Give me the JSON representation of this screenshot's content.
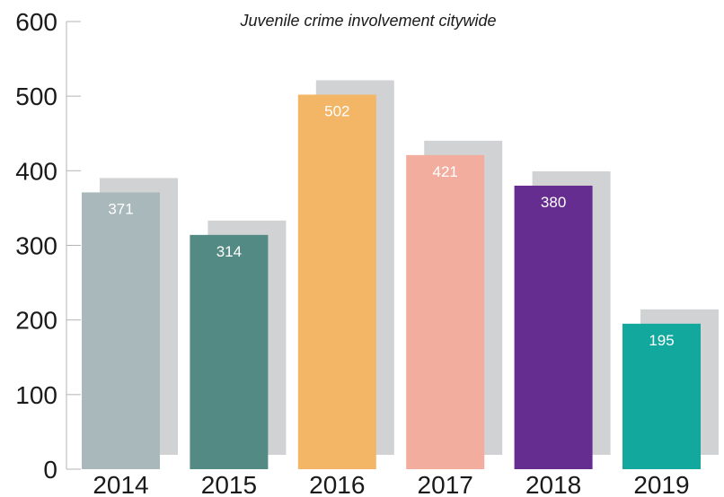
{
  "chart_data": {
    "type": "bar",
    "title": "Juvenile crime involvement citywide",
    "xlabel": "",
    "ylabel": "",
    "categories": [
      "2014",
      "2015",
      "2016",
      "2017",
      "2018",
      "2019"
    ],
    "values": [
      371,
      314,
      502,
      421,
      380,
      195
    ],
    "data_labels": [
      "371",
      "314",
      "502",
      "421",
      "380",
      "195"
    ],
    "ylim": [
      0,
      600
    ],
    "yticks": [
      "0",
      "100",
      "200",
      "300",
      "400",
      "500",
      "600"
    ],
    "bar_colors": [
      "#a9b8bb",
      "#548a84",
      "#f3b566",
      "#f2ad9e",
      "#652d90",
      "#13a89d"
    ],
    "shadow_color": "#d1d2d4",
    "grid": false,
    "legend": "none"
  }
}
